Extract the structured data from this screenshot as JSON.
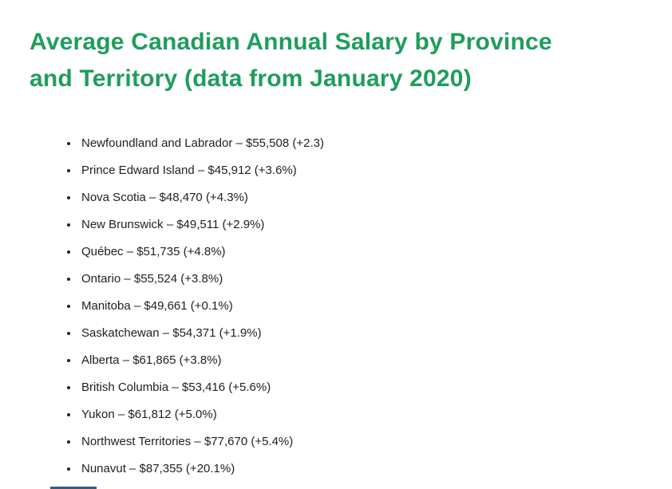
{
  "colors": {
    "heading_color": "#1f9d5c",
    "body_text_color": "#202124",
    "partial_bar_color": "#3b5a7d",
    "page_bg": "#ffffff"
  },
  "heading": {
    "line1": "Average Canadian Annual Salary by Province",
    "line2": "and Territory (data from January 2020)"
  },
  "list": {
    "items": [
      {
        "text": "Newfoundland and Labrador – $55,508 (+2.3)",
        "province": "Newfoundland and Labrador",
        "salary": "$55,508",
        "change": "+2.3"
      },
      {
        "text": "Prince Edward Island – $45,912 (+3.6%)",
        "province": "Prince Edward Island",
        "salary": "$45,912",
        "change": "+3.6%"
      },
      {
        "text": "Nova Scotia – $48,470 (+4.3%)",
        "province": "Nova Scotia",
        "salary": "$48,470",
        "change": "+4.3%"
      },
      {
        "text": "New Brunswick – $49,511 (+2.9%)",
        "province": "New Brunswick",
        "salary": "$49,511",
        "change": "+2.9%"
      },
      {
        "text": "Québec – $51,735 (+4.8%)",
        "province": "Québec",
        "salary": "$51,735",
        "change": "+4.8%"
      },
      {
        "text": "Ontario – $55,524 (+3.8%)",
        "province": "Ontario",
        "salary": "$55,524",
        "change": "+3.8%"
      },
      {
        "text": "Manitoba – $49,661 (+0.1%)",
        "province": "Manitoba",
        "salary": "$49,661",
        "change": "+0.1%"
      },
      {
        "text": "Saskatchewan – $54,371 (+1.9%)",
        "province": "Saskatchewan",
        "salary": "$54,371",
        "change": "+1.9%"
      },
      {
        "text": "Alberta – $61,865 (+3.8%)",
        "province": "Alberta",
        "salary": "$61,865",
        "change": "+3.8%"
      },
      {
        "text": "British Columbia – $53,416 (+5.6%)",
        "province": "British Columbia",
        "salary": "$53,416",
        "change": "+5.6%"
      },
      {
        "text": "Yukon – $61,812 (+5.0%)",
        "province": "Yukon",
        "salary": "$61,812",
        "change": "+5.0%"
      },
      {
        "text": "Northwest Territories – $77,670 (+5.4%)",
        "province": "Northwest Territories",
        "salary": "$77,670",
        "change": "+5.4%"
      },
      {
        "text": "Nunavut – $87,355 (+20.1%)",
        "province": "Nunavut",
        "salary": "$87,355",
        "change": "+20.1%"
      }
    ]
  }
}
